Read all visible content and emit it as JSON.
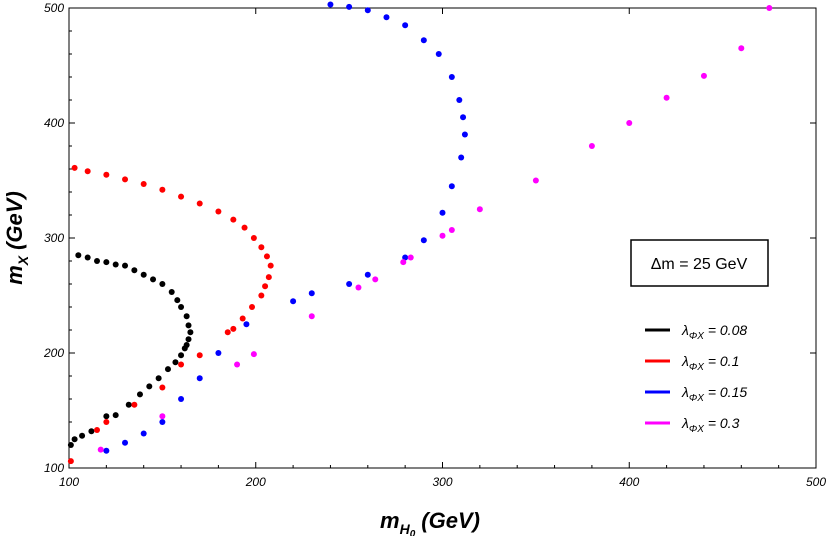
{
  "chart_data": {
    "type": "scatter",
    "title": "",
    "xlabel": {
      "main": "m",
      "sub": "H",
      "subsub": "0",
      "unit": "(GeV)"
    },
    "ylabel": {
      "main": "m",
      "sub": "X",
      "unit": "(GeV)"
    },
    "xlim": [
      100,
      500
    ],
    "ylim": [
      100,
      500
    ],
    "x_ticks": [
      "100",
      "200",
      "300",
      "400",
      "500"
    ],
    "y_ticks": [
      "100",
      "200",
      "300",
      "400",
      "500"
    ],
    "grid": false,
    "legend_position": "bottom-right",
    "annotation": "Δm = 25 GeV",
    "series": [
      {
        "name": "λ_ΦX = 0.08",
        "label_symbol": "λ",
        "label_sub": "ΦX",
        "label_value": " = 0.08",
        "color": "#000000",
        "points": [
          [
            101,
            120
          ],
          [
            103,
            125
          ],
          [
            105,
            285
          ],
          [
            110,
            283
          ],
          [
            115,
            280
          ],
          [
            120,
            279
          ],
          [
            125,
            277
          ],
          [
            130,
            276
          ],
          [
            135,
            272
          ],
          [
            140,
            268
          ],
          [
            145,
            264
          ],
          [
            150,
            260
          ],
          [
            155,
            253
          ],
          [
            158,
            246
          ],
          [
            160,
            240
          ],
          [
            163,
            232
          ],
          [
            164,
            224
          ],
          [
            165,
            218
          ],
          [
            164,
            212
          ],
          [
            163,
            207
          ],
          [
            162,
            204
          ],
          [
            160,
            198
          ],
          [
            157,
            192
          ],
          [
            153,
            186
          ],
          [
            148,
            178
          ],
          [
            143,
            171
          ],
          [
            138,
            164
          ],
          [
            132,
            155
          ],
          [
            125,
            146
          ],
          [
            112,
            132
          ],
          [
            107,
            128
          ],
          [
            120,
            145
          ]
        ]
      },
      {
        "name": "λ_ΦX = 0.1",
        "label_symbol": "λ",
        "label_sub": "ΦX",
        "label_value": " = 0.1",
        "color": "#ff0000",
        "points": [
          [
            101,
            106
          ],
          [
            103,
            361
          ],
          [
            110,
            358
          ],
          [
            120,
            355
          ],
          [
            130,
            351
          ],
          [
            140,
            347
          ],
          [
            150,
            342
          ],
          [
            160,
            336
          ],
          [
            170,
            330
          ],
          [
            180,
            323
          ],
          [
            188,
            316
          ],
          [
            194,
            309
          ],
          [
            199,
            300
          ],
          [
            203,
            292
          ],
          [
            206,
            284
          ],
          [
            208,
            276
          ],
          [
            207,
            266
          ],
          [
            205,
            258
          ],
          [
            203,
            250
          ],
          [
            198,
            240
          ],
          [
            193,
            230
          ],
          [
            188,
            221
          ],
          [
            170,
            198
          ],
          [
            160,
            190
          ],
          [
            150,
            170
          ],
          [
            135,
            155
          ],
          [
            120,
            140
          ],
          [
            115,
            133
          ],
          [
            185,
            218
          ]
        ]
      },
      {
        "name": "λ_ΦX = 0.15",
        "label_symbol": "λ",
        "label_sub": "ΦX",
        "label_value": " = 0.15",
        "color": "#0000ff",
        "points": [
          [
            120,
            115
          ],
          [
            130,
            122
          ],
          [
            140,
            130
          ],
          [
            150,
            140
          ],
          [
            160,
            160
          ],
          [
            170,
            178
          ],
          [
            180,
            200
          ],
          [
            195,
            225
          ],
          [
            220,
            245
          ],
          [
            230,
            252
          ],
          [
            250,
            260
          ],
          [
            260,
            268
          ],
          [
            280,
            283
          ],
          [
            290,
            298
          ],
          [
            300,
            322
          ],
          [
            305,
            345
          ],
          [
            310,
            370
          ],
          [
            312,
            390
          ],
          [
            311,
            405
          ],
          [
            309,
            420
          ],
          [
            305,
            440
          ],
          [
            298,
            460
          ],
          [
            290,
            472
          ],
          [
            280,
            485
          ],
          [
            270,
            492
          ],
          [
            260,
            498
          ],
          [
            250,
            501
          ],
          [
            240,
            503
          ]
        ]
      },
      {
        "name": "λ_ΦX = 0.3",
        "label_symbol": "λ",
        "label_sub": "ΦX",
        "label_value": " = 0.3",
        "color": "#ff00ff",
        "points": [
          [
            117,
            116
          ],
          [
            150,
            145
          ],
          [
            190,
            190
          ],
          [
            199,
            199
          ],
          [
            230,
            232
          ],
          [
            255,
            257
          ],
          [
            264,
            264
          ],
          [
            279,
            279
          ],
          [
            283,
            283
          ],
          [
            300,
            302
          ],
          [
            305,
            307
          ],
          [
            320,
            325
          ],
          [
            350,
            350
          ],
          [
            380,
            380
          ],
          [
            400,
            400
          ],
          [
            420,
            422
          ],
          [
            440,
            441
          ],
          [
            460,
            465
          ],
          [
            475,
            500
          ]
        ]
      }
    ]
  }
}
